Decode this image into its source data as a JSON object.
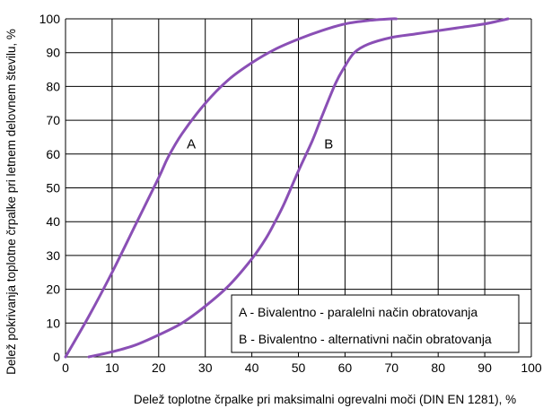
{
  "chart_data": {
    "type": "line",
    "xlabel": "Delež toplotne črpalke pri maksimalni ogrevalni moči (DIN EN 1281), %",
    "ylabel": "Delež pokrivanja toplotne črpalke pri letnem delovnem številu, %",
    "xlim": [
      0,
      100
    ],
    "ylim": [
      0,
      100
    ],
    "grid": true,
    "x_ticks": [
      "0",
      "10",
      "20",
      "30",
      "40",
      "50",
      "60",
      "70",
      "80",
      "90",
      "100"
    ],
    "y_ticks": [
      "0",
      "10",
      "20",
      "30",
      "40",
      "50",
      "60",
      "70",
      "80",
      "90",
      "100"
    ],
    "line_color": "#8a4fb5",
    "series": [
      {
        "name": "A",
        "x": [
          0,
          5,
          10,
          15,
          20,
          22,
          25,
          30,
          35,
          40,
          45,
          50,
          55,
          60,
          65,
          70,
          71
        ],
        "y": [
          0,
          12,
          25,
          39,
          53,
          59,
          66,
          75,
          82,
          87,
          91,
          94,
          96.5,
          98.5,
          99.5,
          100,
          100
        ]
      },
      {
        "name": "B",
        "x": [
          5,
          10,
          15,
          20,
          25,
          30,
          35,
          40,
          43,
          45,
          47,
          50,
          53,
          55,
          58,
          60,
          62,
          65,
          70,
          75,
          80,
          85,
          90,
          95
        ],
        "y": [
          0,
          1.5,
          3.5,
          6.5,
          10,
          15,
          21,
          29,
          35,
          40,
          45.5,
          55,
          64,
          71,
          81,
          86,
          90,
          92.5,
          94.5,
          95.5,
          96.5,
          97.5,
          98.5,
          100
        ]
      }
    ],
    "curve_labels": [
      {
        "text": "A",
        "x": 27,
        "y": 63
      },
      {
        "text": "B",
        "x": 56.5,
        "y": 63
      }
    ],
    "legend": {
      "placement": "bottom-right",
      "entries": [
        "A - Bivalentno - paralelni način obratovanja",
        "B - Bivalentno - alternativni način obratovanja"
      ]
    }
  }
}
